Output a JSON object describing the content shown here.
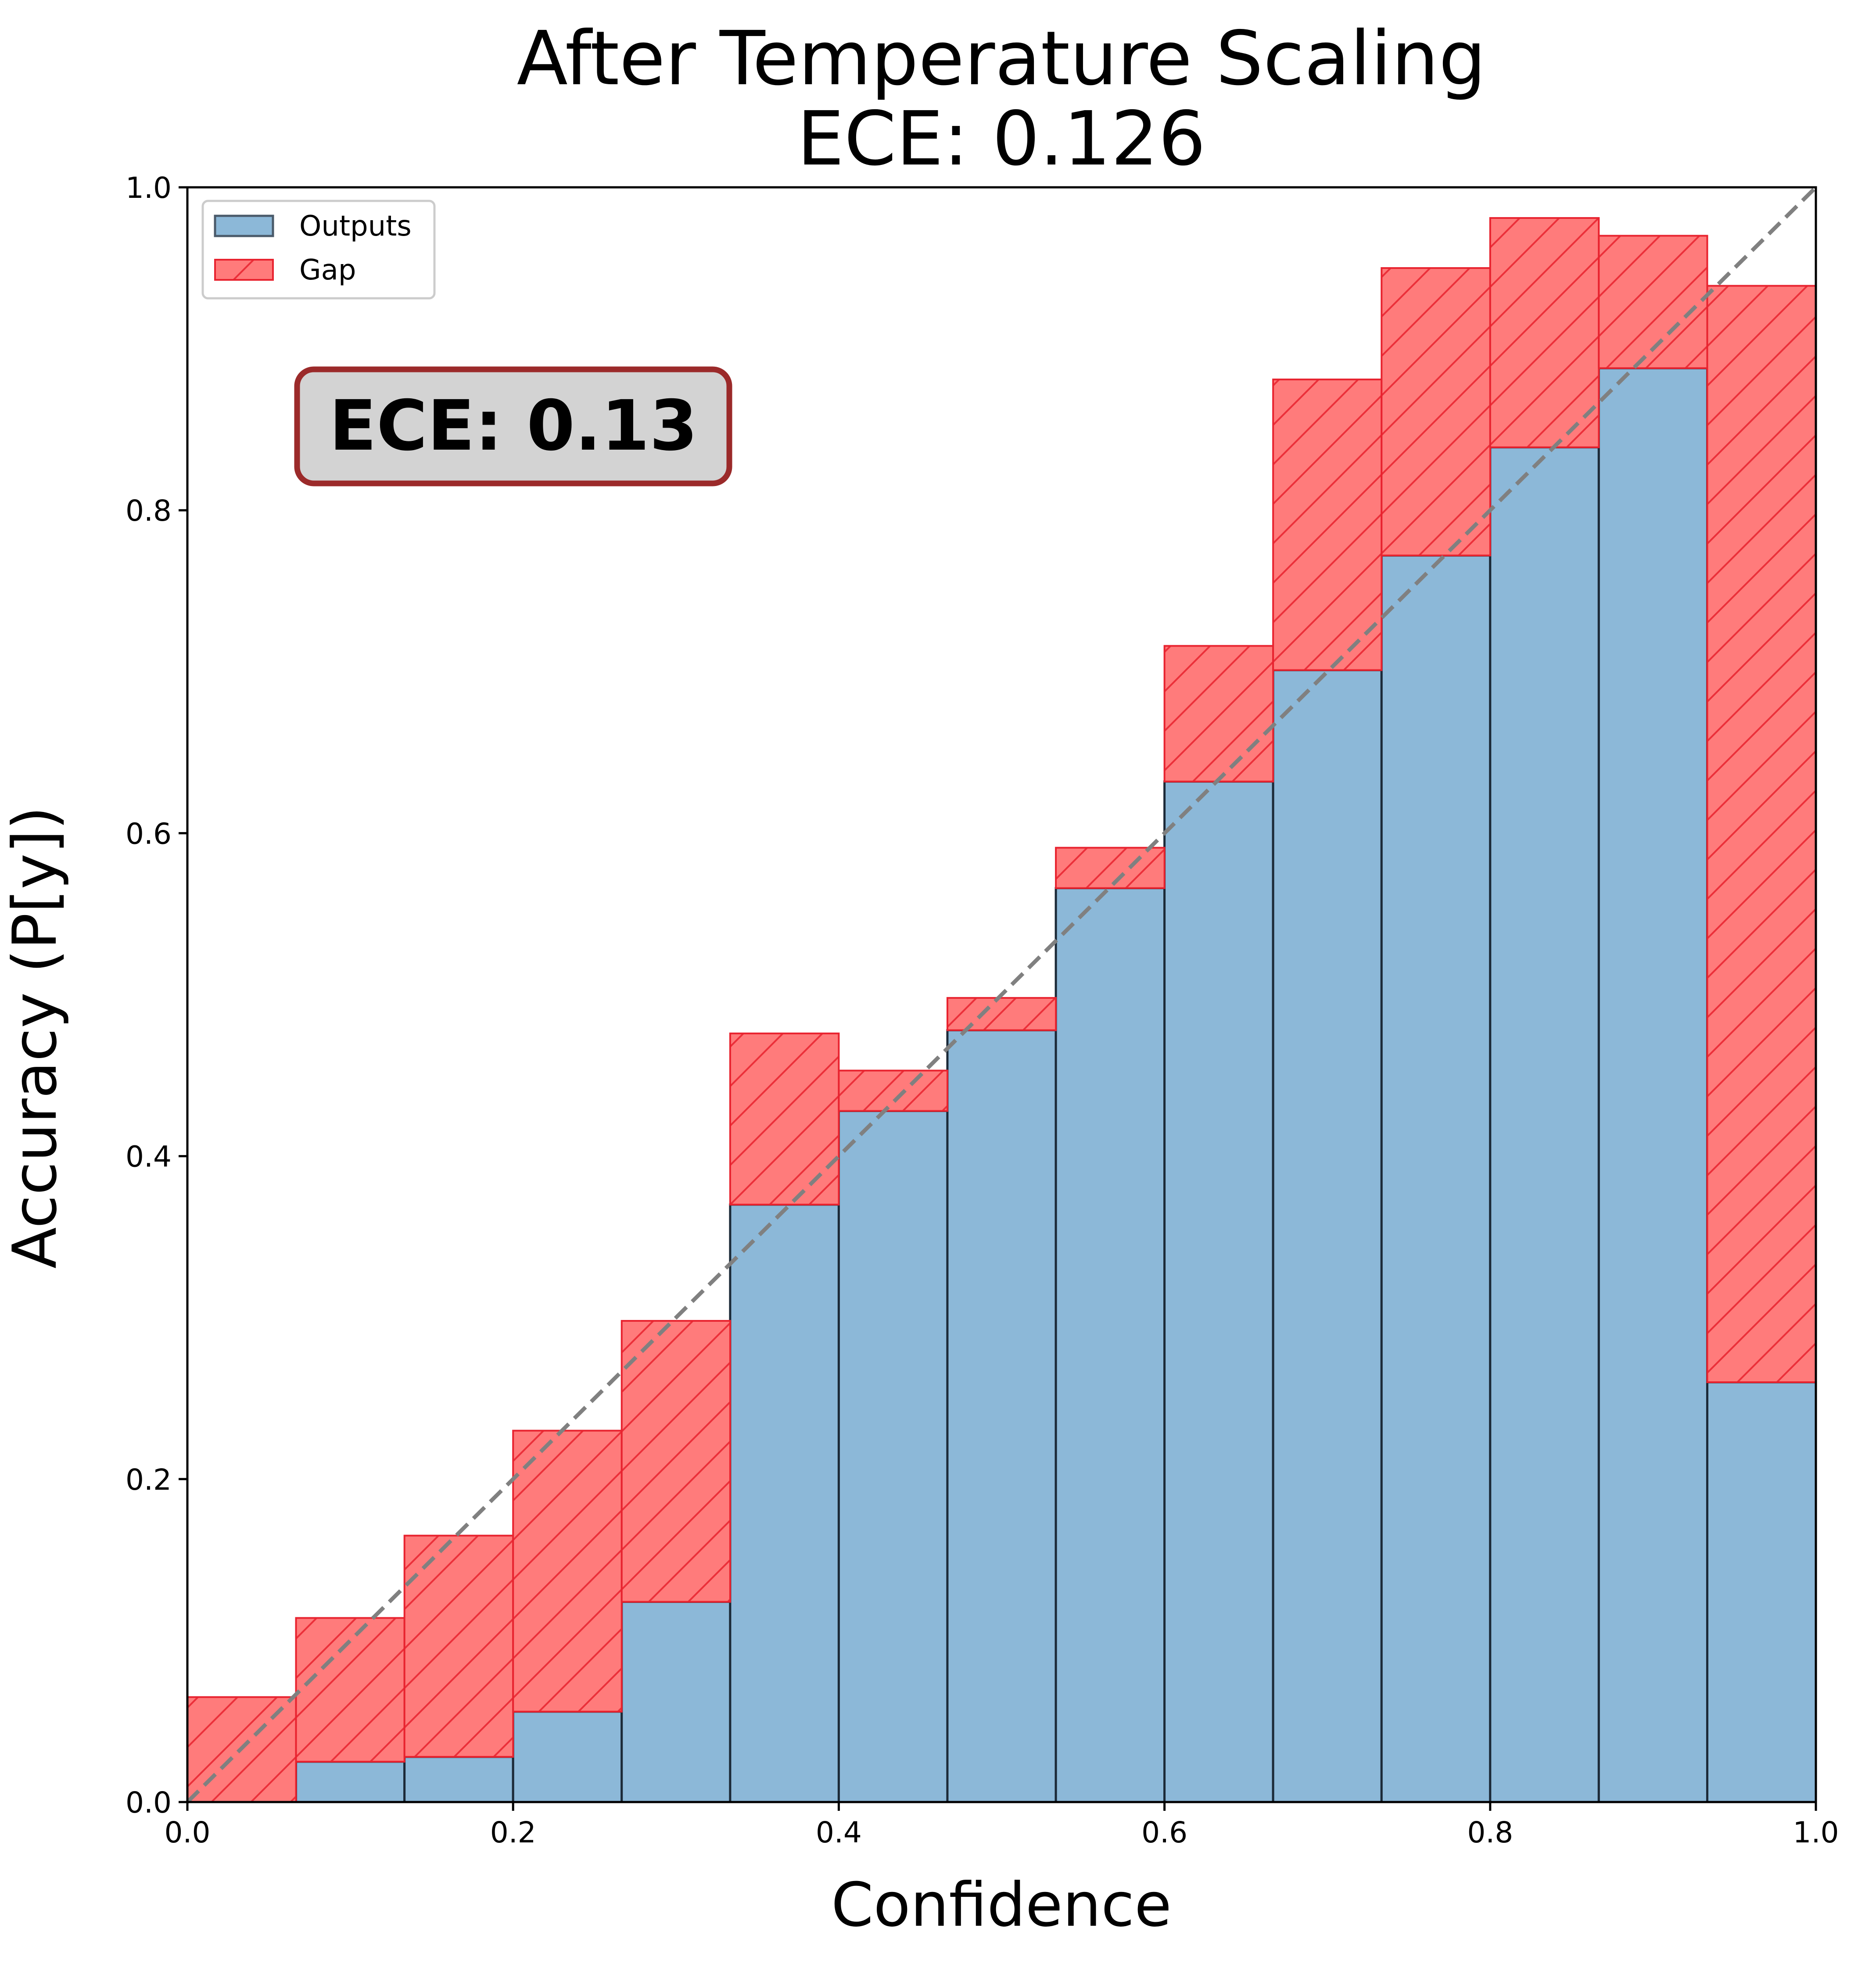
{
  "chart_data": {
    "type": "bar",
    "title": "After Temperature Scaling",
    "subtitle": "ECE: 0.126",
    "xlabel": "Confidence",
    "ylabel": "Accuracy (P[y])",
    "xlim": [
      0.0,
      1.0
    ],
    "ylim": [
      0.0,
      1.0
    ],
    "xticks": [
      "0.0",
      "0.2",
      "0.4",
      "0.6",
      "0.8",
      "1.0"
    ],
    "yticks": [
      "0.0",
      "0.2",
      "0.4",
      "0.6",
      "0.8",
      "1.0"
    ],
    "grid": false,
    "legend_position": "top-left",
    "bin_edges": [
      0.0,
      0.0667,
      0.1333,
      0.2,
      0.2667,
      0.3333,
      0.4,
      0.4667,
      0.5333,
      0.6,
      0.6667,
      0.7333,
      0.8,
      0.8667,
      0.9333,
      1.0
    ],
    "series": [
      {
        "name": "Outputs",
        "color": "#8cb8d8",
        "values": [
          0.0,
          0.025,
          0.028,
          0.056,
          0.124,
          0.37,
          0.428,
          0.478,
          0.566,
          0.632,
          0.701,
          0.772,
          0.839,
          0.888,
          0.26
        ]
      },
      {
        "name": "Gap",
        "color": "#ff7b7b",
        "overlap_color": "#c85a6c",
        "values": [
          0.065,
          0.114,
          0.165,
          0.23,
          0.298,
          0.476,
          0.453,
          0.498,
          0.591,
          0.716,
          0.881,
          0.95,
          0.981,
          0.97,
          0.939
        ]
      }
    ],
    "reference_line": {
      "x": [
        0.0,
        1.0
      ],
      "y": [
        0.0,
        1.0
      ],
      "color": "#808080",
      "style": "dashed"
    },
    "annotation": {
      "text": "ECE: 0.13",
      "position": "top-left",
      "box_fill": "#d3d3d3",
      "box_edge": "#9b2a2a"
    }
  }
}
